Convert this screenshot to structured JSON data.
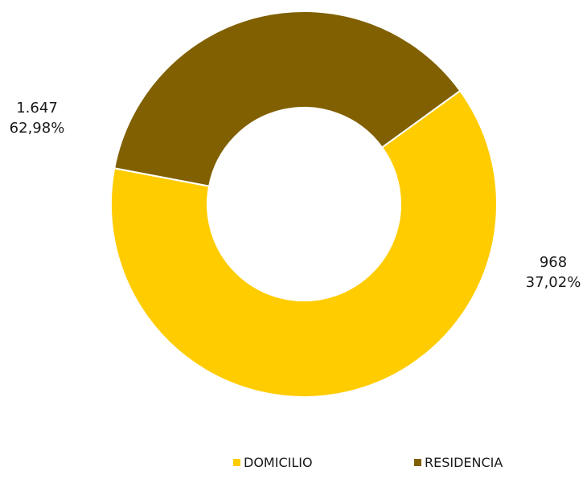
{
  "chart_data": {
    "type": "pie",
    "variant": "donut",
    "title": "",
    "categories": [
      "DOMICILIO",
      "RESIDENCIA"
    ],
    "values": [
      1647,
      968
    ],
    "value_labels": [
      "1.647",
      "968"
    ],
    "percent_labels": [
      "62,98%",
      "37,02%"
    ],
    "colors": [
      "#FFCC00",
      "#806000"
    ],
    "legend_position": "bottom"
  }
}
